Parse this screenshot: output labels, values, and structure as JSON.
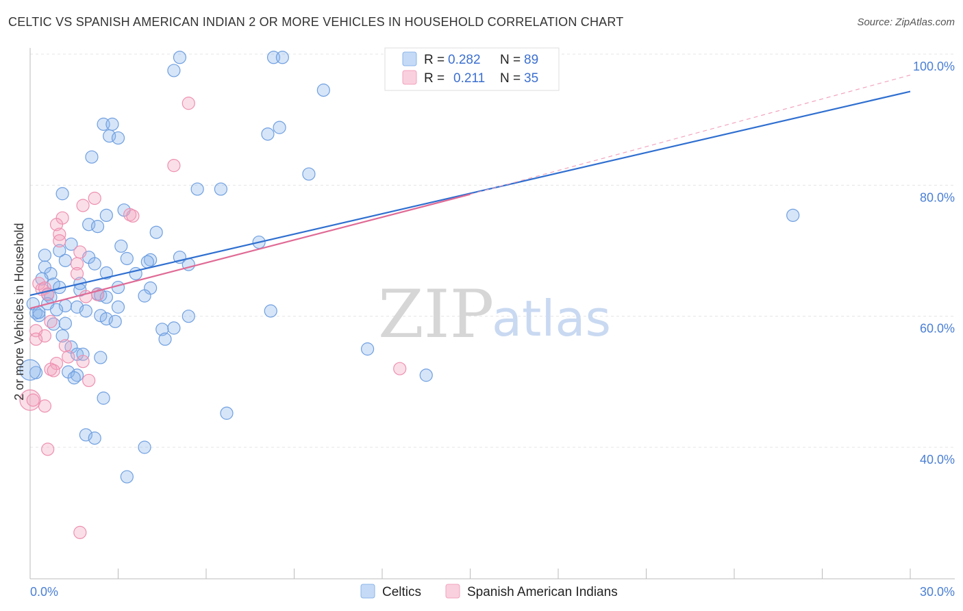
{
  "title": "CELTIC VS SPANISH AMERICAN INDIAN 2 OR MORE VEHICLES IN HOUSEHOLD CORRELATION CHART",
  "source": "Source: ZipAtlas.com",
  "watermark": {
    "zip": "ZIP",
    "atlas": "atlas"
  },
  "colors": {
    "celtic": "#8ab4ea",
    "spanish": "#f2a3bd",
    "celtic_line": "#2f6fd0",
    "spanish_line": "#e06a95"
  },
  "legend": {
    "r_label": "R =",
    "n_label": "N =",
    "celtic": {
      "r": "0.282",
      "n": "89"
    },
    "spanish": {
      "r": "0.211",
      "n": "35"
    }
  },
  "bottom_legend": {
    "celtic": "Celtics",
    "spanish": "Spanish American Indians"
  },
  "chart_data": {
    "type": "scatter",
    "title": "CELTIC VS SPANISH AMERICAN INDIAN 2 OR MORE VEHICLES IN HOUSEHOLD CORRELATION CHART",
    "xlabel": "",
    "ylabel": "2 or more Vehicles in Household",
    "xlim": [
      0,
      30
    ],
    "ylim": [
      20,
      102
    ],
    "x_tick_labels": [
      "0.0%",
      "30.0%"
    ],
    "y_ticks": [
      40,
      60,
      80,
      100
    ],
    "y_tick_labels": [
      "40.0%",
      "60.0%",
      "80.0%",
      "100.0%"
    ],
    "series": [
      {
        "name": "Celtics",
        "r": 0.282,
        "n": 89,
        "trend": {
          "x0": 0,
          "y0": 63.2,
          "x1": 30,
          "y1": 94.3
        },
        "points": [
          [
            5.1,
            99.5
          ],
          [
            8.3,
            99.5
          ],
          [
            8.6,
            99.5
          ],
          [
            4.9,
            97.5
          ],
          [
            10,
            94.5
          ],
          [
            2.5,
            89.3
          ],
          [
            2.8,
            89.3
          ],
          [
            8.5,
            88.8
          ],
          [
            2.7,
            87.5
          ],
          [
            3,
            87.2
          ],
          [
            8.1,
            87.8
          ],
          [
            2.1,
            84.3
          ],
          [
            9.5,
            81.7
          ],
          [
            5.7,
            79.4
          ],
          [
            6.5,
            79.4
          ],
          [
            1.1,
            78.7
          ],
          [
            3.2,
            76.2
          ],
          [
            2.6,
            75.4
          ],
          [
            26,
            75.4
          ],
          [
            2,
            74
          ],
          [
            2.3,
            73.7
          ],
          [
            4.3,
            72.8
          ],
          [
            7.8,
            71.3
          ],
          [
            1.4,
            71
          ],
          [
            3.1,
            70.7
          ],
          [
            1,
            70
          ],
          [
            0.5,
            69.3
          ],
          [
            2,
            69
          ],
          [
            5.1,
            69
          ],
          [
            3.3,
            68.8
          ],
          [
            4.1,
            68.6
          ],
          [
            1.2,
            68.5
          ],
          [
            4,
            68.3
          ],
          [
            2.2,
            68
          ],
          [
            5.4,
            67.9
          ],
          [
            0.5,
            67.5
          ],
          [
            3.6,
            66.5
          ],
          [
            0.7,
            66.5
          ],
          [
            2.6,
            66.6
          ],
          [
            0.4,
            65.7
          ],
          [
            1.7,
            65
          ],
          [
            0.8,
            64.9
          ],
          [
            1,
            64.4
          ],
          [
            3,
            64.4
          ],
          [
            4.1,
            64.3
          ],
          [
            1.7,
            64
          ],
          [
            0.6,
            63.3
          ],
          [
            3.9,
            63.1
          ],
          [
            2.3,
            63.4
          ],
          [
            2.4,
            63.2
          ],
          [
            2.6,
            62.9
          ],
          [
            0.7,
            62.9
          ],
          [
            0.1,
            61.9
          ],
          [
            0.6,
            61.9
          ],
          [
            1.2,
            61.6
          ],
          [
            3,
            61.4
          ],
          [
            1.6,
            61.4
          ],
          [
            0.9,
            61
          ],
          [
            8.2,
            60.8
          ],
          [
            0.2,
            60.5
          ],
          [
            0.3,
            60.1
          ],
          [
            2.4,
            60.1
          ],
          [
            5.4,
            60
          ],
          [
            2.6,
            59.6
          ],
          [
            2.9,
            59.2
          ],
          [
            1.2,
            58.9
          ],
          [
            0.8,
            58.8
          ],
          [
            4.5,
            58
          ],
          [
            4.9,
            58.2
          ],
          [
            1.1,
            57
          ],
          [
            4.6,
            56.5
          ],
          [
            11.5,
            55
          ],
          [
            1.4,
            55.3
          ],
          [
            1.6,
            54.2
          ],
          [
            1.8,
            54.2
          ],
          [
            2.4,
            53.7
          ],
          [
            0.2,
            51.4
          ],
          [
            1.3,
            51.5
          ],
          [
            1.6,
            51
          ],
          [
            1.5,
            50.6
          ],
          [
            13.5,
            51
          ],
          [
            2.5,
            47.5
          ],
          [
            6.7,
            45.2
          ],
          [
            1.9,
            41.9
          ],
          [
            2.2,
            41.4
          ],
          [
            3.9,
            40
          ],
          [
            3.3,
            35.5
          ],
          [
            1.9,
            60.8
          ],
          [
            0.3,
            60.6
          ]
        ]
      },
      {
        "name": "Spanish American Indians",
        "r": 0.211,
        "n": 35,
        "trend": {
          "x0": 0,
          "y0": 61.2,
          "x1": 15,
          "y1": 78.6
        },
        "dashed_extension": {
          "x0": 15,
          "y0": 78.6,
          "x1": 30,
          "y1": 96.8
        },
        "points": [
          [
            5.4,
            92.5
          ],
          [
            4.9,
            83
          ],
          [
            2.2,
            78
          ],
          [
            1.8,
            76.9
          ],
          [
            3.4,
            75.5
          ],
          [
            3.5,
            75.3
          ],
          [
            1.1,
            75
          ],
          [
            0.9,
            74
          ],
          [
            1,
            72.5
          ],
          [
            1,
            71.5
          ],
          [
            1.7,
            69.8
          ],
          [
            1.6,
            68
          ],
          [
            1.6,
            66.5
          ],
          [
            0.3,
            65
          ],
          [
            0.4,
            64.1
          ],
          [
            0.5,
            64.3
          ],
          [
            0.6,
            63.4
          ],
          [
            2.3,
            63.3
          ],
          [
            1.9,
            63
          ],
          [
            0.7,
            59.2
          ],
          [
            0.2,
            57.8
          ],
          [
            0.5,
            57
          ],
          [
            0.2,
            56.5
          ],
          [
            1.2,
            55.5
          ],
          [
            1.3,
            53.8
          ],
          [
            1.8,
            53.1
          ],
          [
            0.9,
            52.8
          ],
          [
            0.7,
            51.9
          ],
          [
            0.8,
            51.7
          ],
          [
            12.6,
            52
          ],
          [
            2,
            50.2
          ],
          [
            0.1,
            47.2
          ],
          [
            0.5,
            46.3
          ],
          [
            0.6,
            39.7
          ],
          [
            1.7,
            27
          ]
        ]
      }
    ]
  }
}
